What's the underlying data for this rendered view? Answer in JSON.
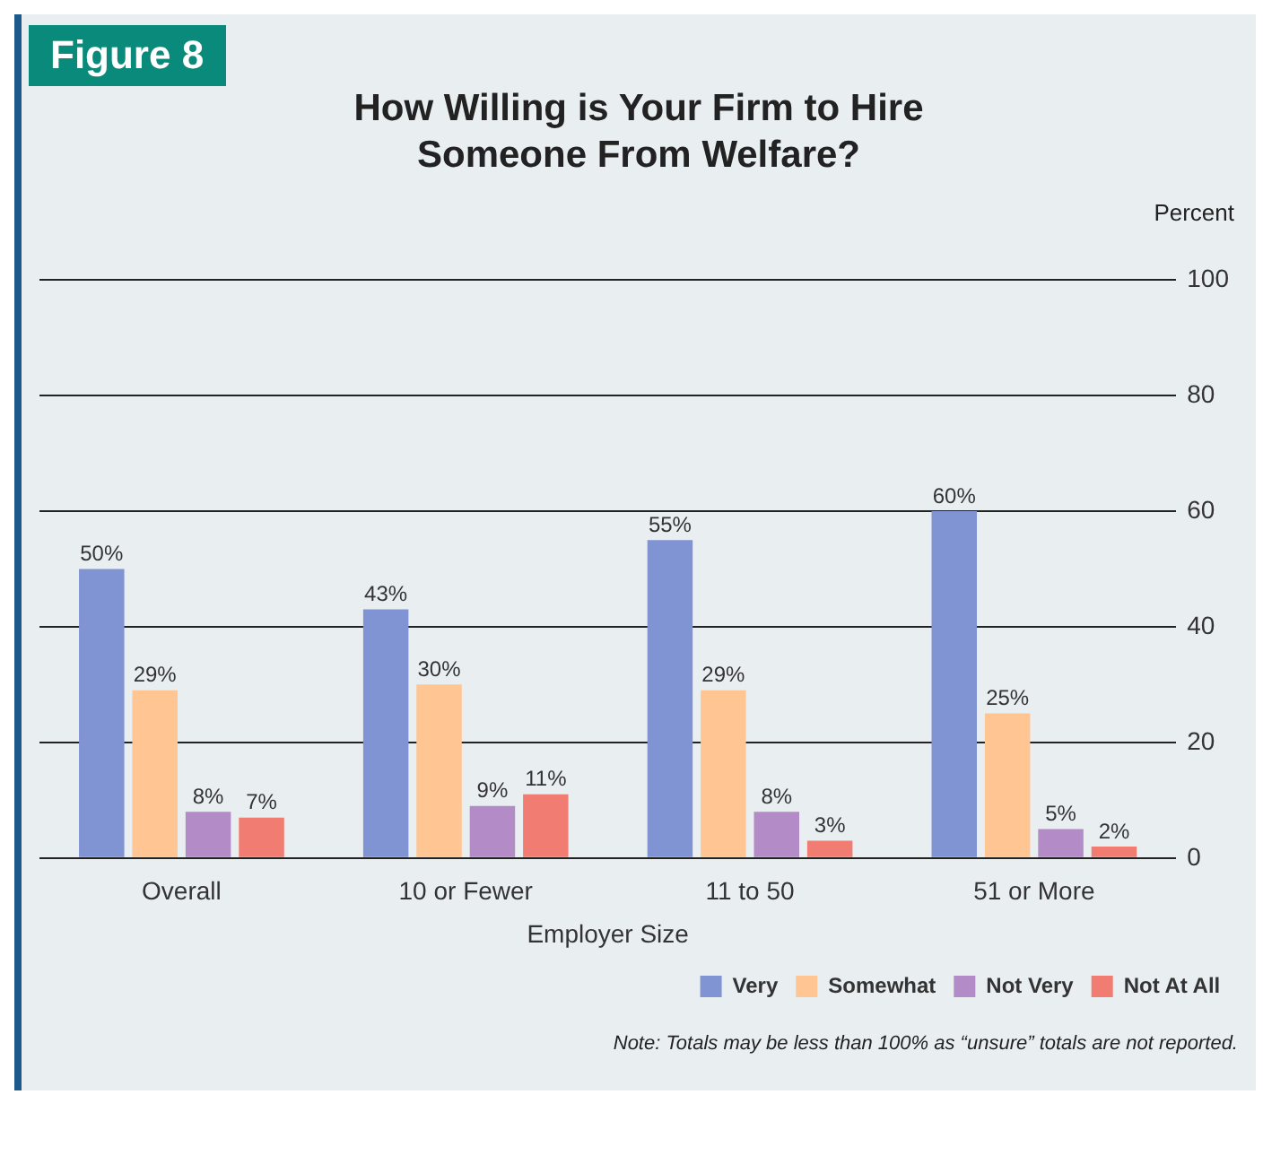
{
  "chart_data": {
    "type": "bar",
    "title": "How Willing is Your Firm to Hire Someone From Welfare?",
    "xlabel": "Employer Size",
    "ylabel": "Percent",
    "categories": [
      "Overall",
      "10 or Fewer",
      "11 to 50",
      "51 or More"
    ],
    "series": [
      {
        "name": "Very",
        "color": "#8093d2",
        "values": [
          50,
          43,
          55,
          60
        ],
        "value_labels": [
          "50%",
          "43%",
          "55%",
          "60%"
        ]
      },
      {
        "name": "Somewhat",
        "color": "#ffc593",
        "values": [
          29,
          30,
          29,
          25
        ],
        "value_labels": [
          "29%",
          "30%",
          "29%",
          "25%"
        ]
      },
      {
        "name": "Not Very",
        "color": "#b38bc6",
        "values": [
          8,
          9,
          8,
          5
        ],
        "value_labels": [
          "8%",
          "9%",
          "8%",
          "5%"
        ]
      },
      {
        "name": "Not At All",
        "color": "#f07c72",
        "values": [
          7,
          11,
          3,
          2
        ],
        "value_labels": [
          "7%",
          "11%",
          "3%",
          "2%"
        ]
      }
    ],
    "ylim": [
      0,
      100
    ],
    "yticks": [
      0,
      20,
      40,
      60,
      80,
      100
    ],
    "grid": "y",
    "legend": "bottom right",
    "annotations": [
      "Figure 8",
      "Note: Totals may be less than 100% as “unsure” totals are not reported."
    ]
  }
}
